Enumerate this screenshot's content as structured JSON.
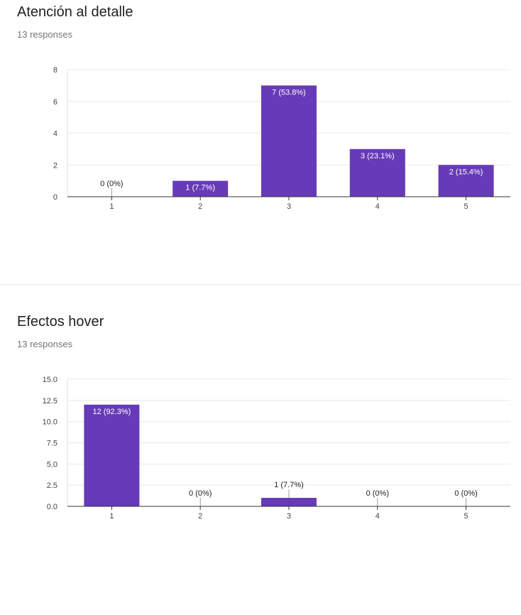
{
  "chart_data": [
    {
      "type": "bar",
      "title": "Atención al detalle",
      "subtitle": "13 responses",
      "categories": [
        "1",
        "2",
        "3",
        "4",
        "5"
      ],
      "values": [
        0,
        1,
        7,
        3,
        2
      ],
      "data_labels": [
        "0 (0%)",
        "1 (7.7%)",
        "7 (53.8%)",
        "3 (23.1%)",
        "2 (15.4%)"
      ],
      "yticks": [
        "0",
        "2",
        "4",
        "6",
        "8"
      ],
      "ylim": [
        0,
        8
      ],
      "bar_color": "#673ab7",
      "grid": true
    },
    {
      "type": "bar",
      "title": "Efectos hover",
      "subtitle": "13 responses",
      "categories": [
        "1",
        "2",
        "3",
        "4",
        "5"
      ],
      "values": [
        12,
        0,
        1,
        0,
        0
      ],
      "data_labels": [
        "12 (92.3%)",
        "0 (0%)",
        "1 (7.7%)",
        "0 (0%)",
        "0 (0%)"
      ],
      "yticks": [
        "0.0",
        "2.5",
        "5.0",
        "7.5",
        "10.0",
        "12.5",
        "15.0"
      ],
      "ylim": [
        0,
        15
      ],
      "bar_color": "#673ab7",
      "grid": true
    }
  ]
}
